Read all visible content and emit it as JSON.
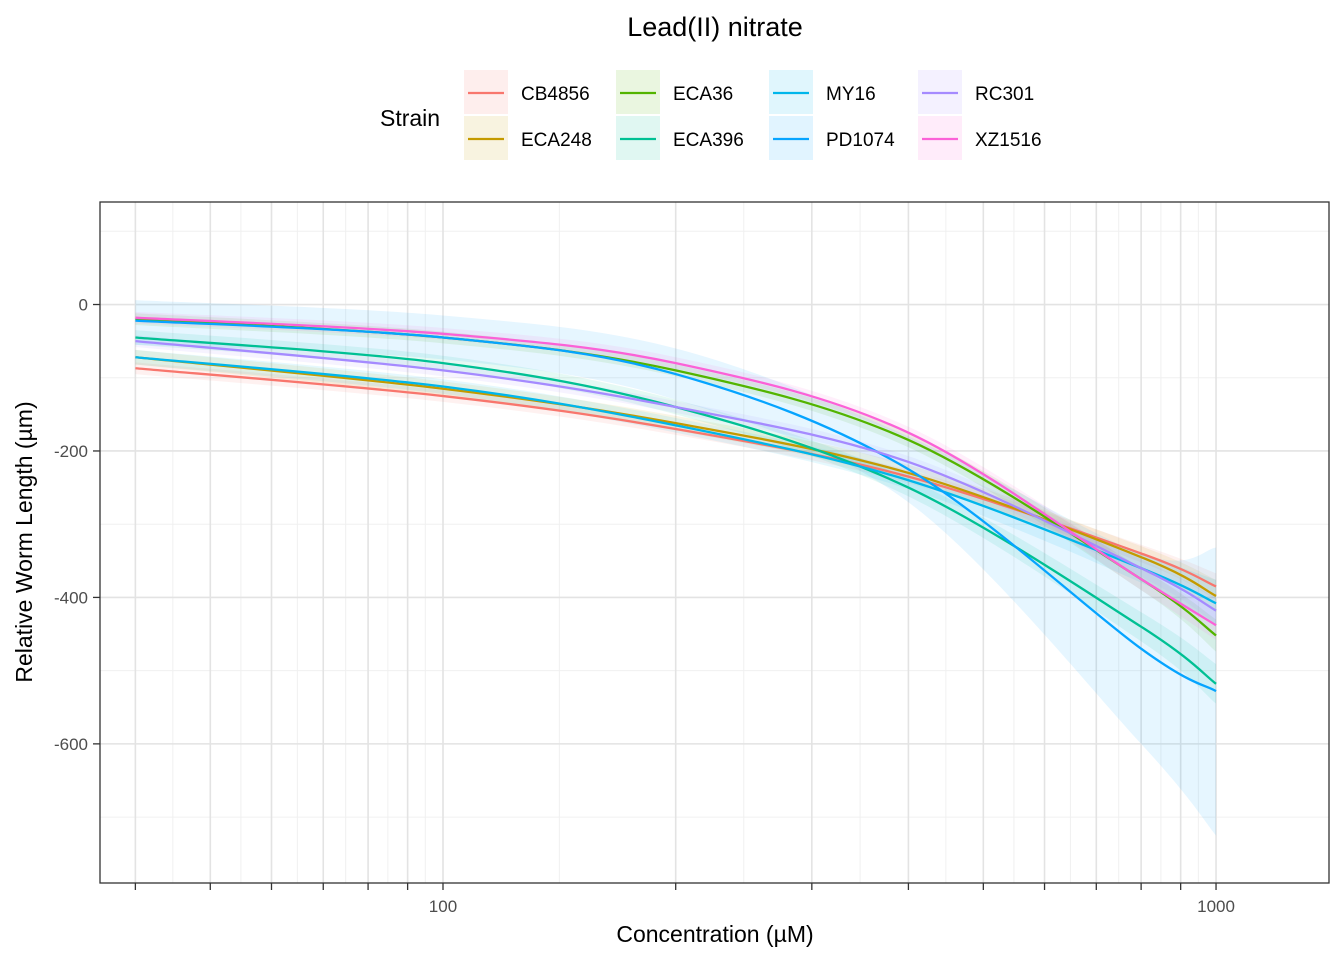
{
  "chart_data": {
    "type": "line",
    "title": "Lead(II) nitrate",
    "xlabel": "Concentration (µM)",
    "ylabel": "Relative Worm Length (µm)",
    "x_scale": "log10",
    "xlim": [
      36,
      1400
    ],
    "ylim": [
      -790,
      140
    ],
    "x_ticks": [
      100,
      1000
    ],
    "x_tick_labels": [
      "100",
      "1000"
    ],
    "y_ticks": [
      0,
      -200,
      -400,
      -600
    ],
    "y_tick_labels": [
      "0",
      "-200",
      "-400",
      "-600"
    ],
    "grid": true,
    "legend": {
      "title": "Strain",
      "position": "top"
    },
    "x": [
      40,
      100,
      200,
      400,
      800,
      1000
    ],
    "series": [
      {
        "name": "CB4856",
        "color": "#F8766D",
        "values": [
          -87,
          -125,
          -170,
          -235,
          -340,
          -385
        ],
        "ci": {
          "lower": [
            -95,
            -133,
            -178,
            -244,
            -352,
            -403
          ],
          "upper": [
            -79,
            -117,
            -162,
            -226,
            -328,
            -367
          ]
        }
      },
      {
        "name": "ECA248",
        "color": "#C49A00",
        "values": [
          -72,
          -115,
          -162,
          -230,
          -345,
          -398
        ],
        "ci": {
          "lower": [
            -82,
            -125,
            -172,
            -241,
            -360,
            -420
          ],
          "upper": [
            -62,
            -105,
            -152,
            -219,
            -330,
            -376
          ]
        }
      },
      {
        "name": "ECA36",
        "color": "#53B400",
        "values": [
          -20,
          -45,
          -90,
          -185,
          -375,
          -452
        ],
        "ci": {
          "lower": [
            -28,
            -53,
            -98,
            -195,
            -390,
            -474
          ],
          "upper": [
            -12,
            -37,
            -82,
            -175,
            -360,
            -430
          ]
        }
      },
      {
        "name": "ECA396",
        "color": "#00C094",
        "values": [
          -45,
          -80,
          -140,
          -250,
          -440,
          -518
        ],
        "ci": {
          "lower": [
            -55,
            -90,
            -150,
            -262,
            -460,
            -545
          ],
          "upper": [
            -35,
            -70,
            -130,
            -238,
            -420,
            -491
          ]
        }
      },
      {
        "name": "MY16",
        "color": "#00B6EB",
        "values": [
          -72,
          -112,
          -165,
          -240,
          -360,
          -408
        ],
        "ci": {
          "lower": [
            -82,
            -122,
            -175,
            -252,
            -380,
            -440
          ],
          "upper": [
            -62,
            -102,
            -155,
            -228,
            -340,
            -376
          ]
        }
      },
      {
        "name": "PD1074",
        "color": "#06A4FF",
        "values": [
          -22,
          -45,
          -95,
          -225,
          -470,
          -528
        ],
        "ci": {
          "lower": [
            -55,
            -75,
            -130,
            -270,
            -600,
            -725
          ],
          "upper": [
            6,
            -15,
            -60,
            -180,
            -340,
            -332
          ]
        }
      },
      {
        "name": "RC301",
        "color": "#A58AFF",
        "values": [
          -50,
          -90,
          -140,
          -215,
          -360,
          -418
        ],
        "ci": {
          "lower": [
            -58,
            -98,
            -148,
            -223,
            -372,
            -436
          ],
          "upper": [
            -42,
            -82,
            -132,
            -207,
            -348,
            -400
          ]
        }
      },
      {
        "name": "XZ1516",
        "color": "#FB61D7",
        "values": [
          -18,
          -40,
          -80,
          -175,
          -375,
          -438
        ],
        "ci": {
          "lower": [
            -26,
            -48,
            -88,
            -183,
            -390,
            -458
          ],
          "upper": [
            -10,
            -32,
            -72,
            -167,
            -360,
            -418
          ]
        }
      }
    ]
  }
}
